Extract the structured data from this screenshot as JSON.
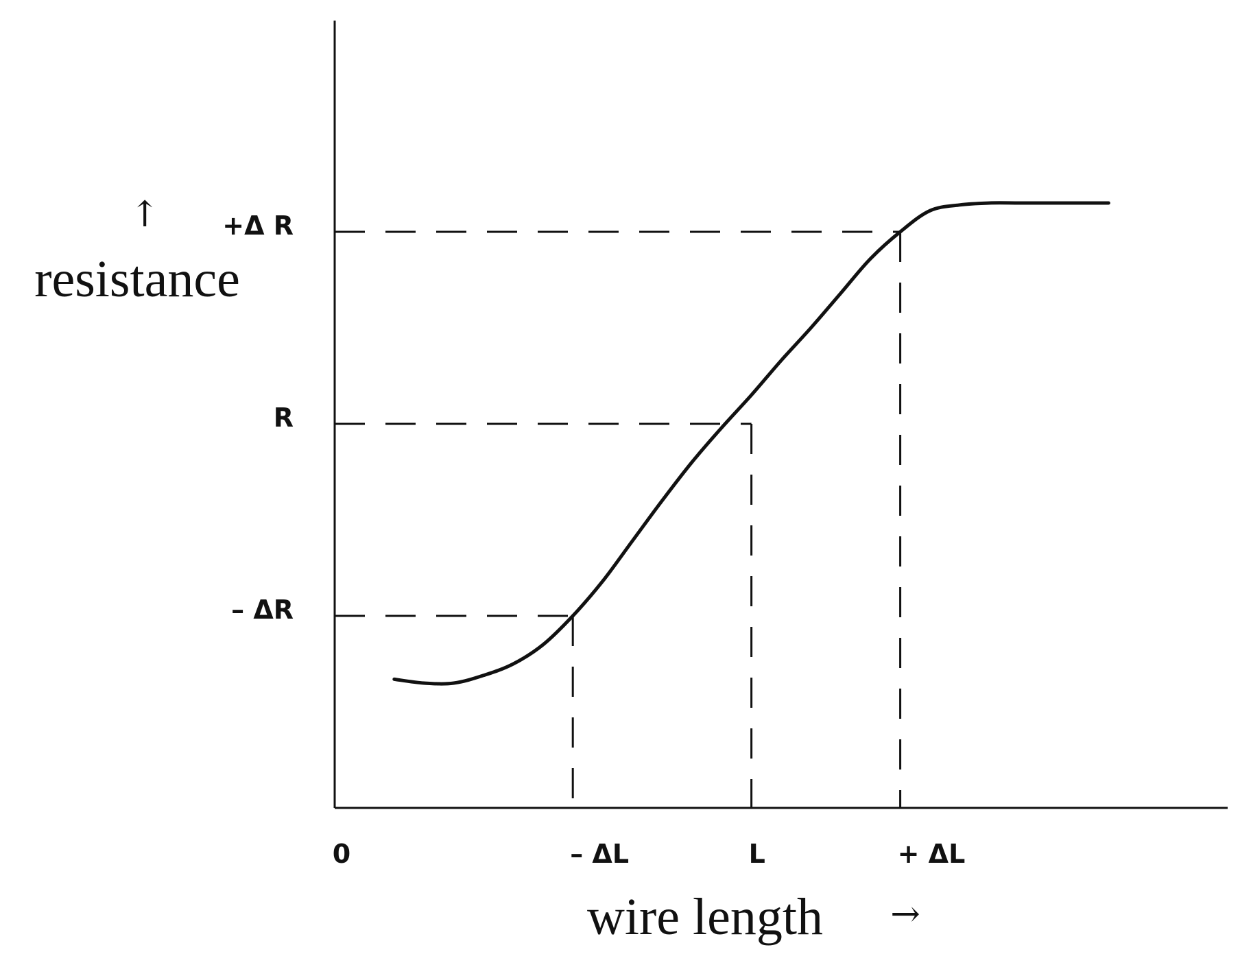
{
  "chart_data": {
    "type": "line",
    "title": "",
    "xlabel": "wire length",
    "ylabel": "resistance",
    "x_arrow": "→",
    "y_arrow": "↑",
    "x_ticks": [
      {
        "label": "0",
        "value": 0
      },
      {
        "label": "– ΔL",
        "value": 1.6
      },
      {
        "label": "L",
        "value": 2.8
      },
      {
        "label": "+ ΔL",
        "value": 3.8
      }
    ],
    "y_ticks": [
      {
        "label": "– ΔR",
        "value": 1.0
      },
      {
        "label": "R",
        "value": 2.0
      },
      {
        "label": "+Δ R",
        "value": 3.0
      }
    ],
    "xlim": [
      0,
      6.0
    ],
    "ylim": [
      0,
      4.1
    ],
    "grid": false,
    "legend": "none",
    "series": [
      {
        "x": [
          0.4,
          0.6,
          0.8,
          1.0,
          1.2,
          1.4,
          1.6,
          1.8,
          2.0,
          2.2,
          2.4,
          2.6,
          2.8,
          3.0,
          3.2,
          3.4,
          3.6,
          3.8,
          4.0,
          4.2,
          4.4,
          4.6,
          4.8,
          5.0,
          5.2
        ],
        "y": [
          0.67,
          0.65,
          0.65,
          0.69,
          0.75,
          0.85,
          1.0,
          1.18,
          1.39,
          1.6,
          1.8,
          1.98,
          2.15,
          2.33,
          2.5,
          2.68,
          2.86,
          3.0,
          3.11,
          3.14,
          3.15,
          3.15,
          3.15,
          3.15,
          3.15
        ]
      }
    ],
    "guides": [
      {
        "label_ref": "– ΔR / – ΔL",
        "x": 1.6,
        "y": 1.0
      },
      {
        "label_ref": "R / L",
        "x": 2.8,
        "y": 2.0
      },
      {
        "label_ref": "+Δ R / + ΔL",
        "x": 3.8,
        "y": 3.0
      }
    ]
  }
}
